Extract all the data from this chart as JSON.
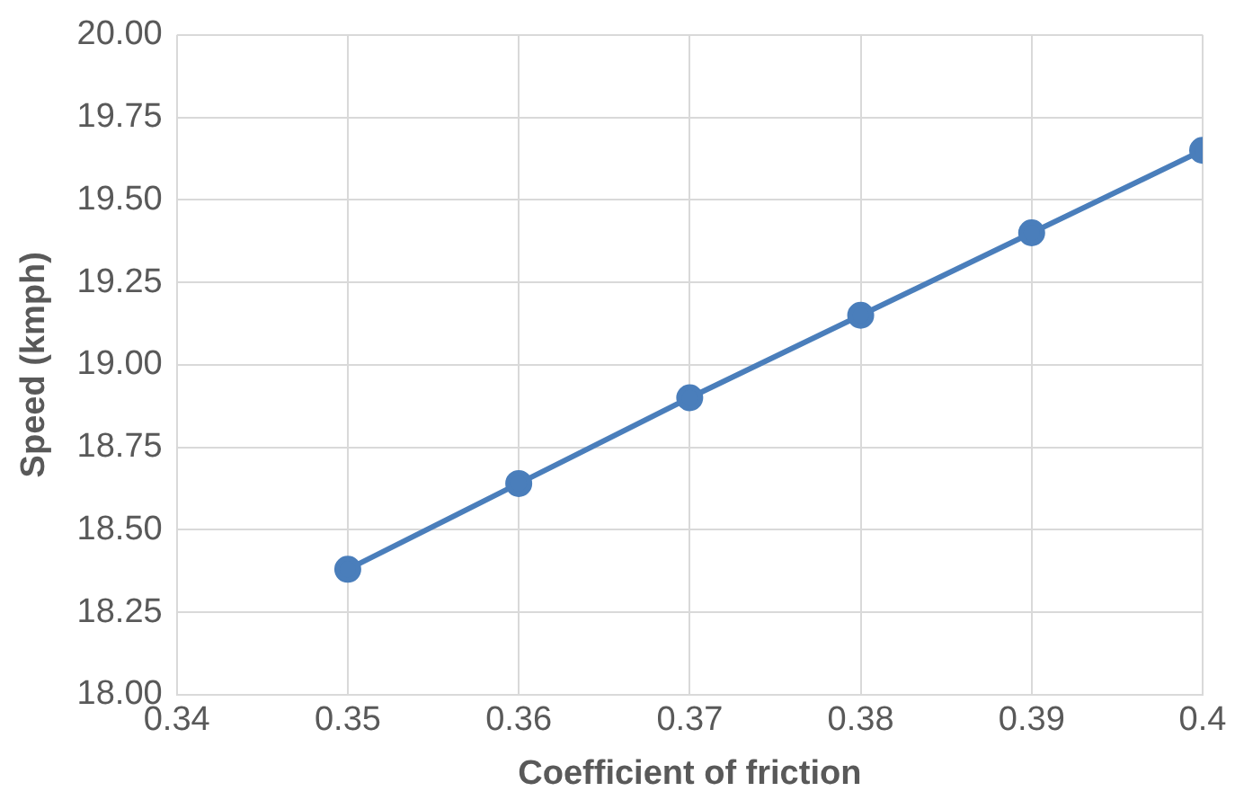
{
  "chart_data": {
    "type": "line",
    "xlabel": "Coefficient of friction",
    "ylabel": "Speed (kmph)",
    "x": [
      0.35,
      0.36,
      0.37,
      0.38,
      0.39,
      0.4
    ],
    "series": [
      {
        "color": "#4a7ebb",
        "values": [
          18.38,
          18.64,
          18.9,
          19.15,
          19.4,
          19.65
        ]
      }
    ],
    "xlim": [
      0.34,
      0.4
    ],
    "xticks": [
      0.34,
      0.35,
      0.36,
      0.37,
      0.38,
      0.39,
      0.4
    ],
    "ylim": [
      18,
      20
    ],
    "yticks": [
      {
        "value": 18,
        "label": "18.00"
      },
      {
        "value": 18.25,
        "label": "18.25"
      },
      {
        "value": 18.5,
        "label": "18.50"
      },
      {
        "value": 18.75,
        "label": "18.75"
      },
      {
        "value": 19,
        "label": "19.00"
      },
      {
        "value": 19.25,
        "label": "19.25"
      },
      {
        "value": 19.5,
        "label": "19.50"
      },
      {
        "value": 19.75,
        "label": "19.75"
      },
      {
        "value": 20,
        "label": "20.00"
      }
    ],
    "grid": true,
    "marker": "circle",
    "line_style": "solid",
    "legend": false
  }
}
